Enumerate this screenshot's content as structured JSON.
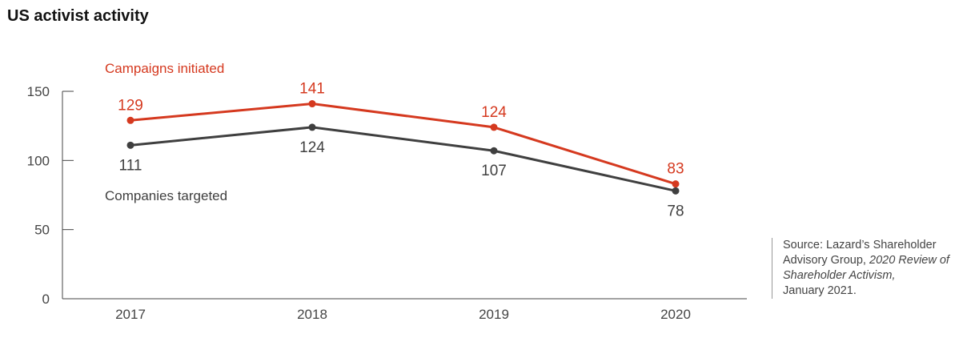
{
  "chart_data": {
    "type": "line",
    "title": "US activist activity",
    "x": [
      "2017",
      "2018",
      "2019",
      "2020"
    ],
    "ylim": [
      0,
      150
    ],
    "yticks": [
      0,
      50,
      100,
      150
    ],
    "grid": false,
    "series": [
      {
        "name": "Campaigns initiated",
        "values": [
          129,
          141,
          124,
          83
        ],
        "color": "#d5391f",
        "label_position": "above"
      },
      {
        "name": "Companies targeted",
        "values": [
          111,
          124,
          107,
          78
        ],
        "color": "#3f3f3f",
        "label_position": "below"
      }
    ]
  },
  "source": {
    "part1": "Source: Lazard’s Shareholder Advisory Group, ",
    "italic": "2020 Review of Shareholder Activism,",
    "part2": "January 2021."
  }
}
